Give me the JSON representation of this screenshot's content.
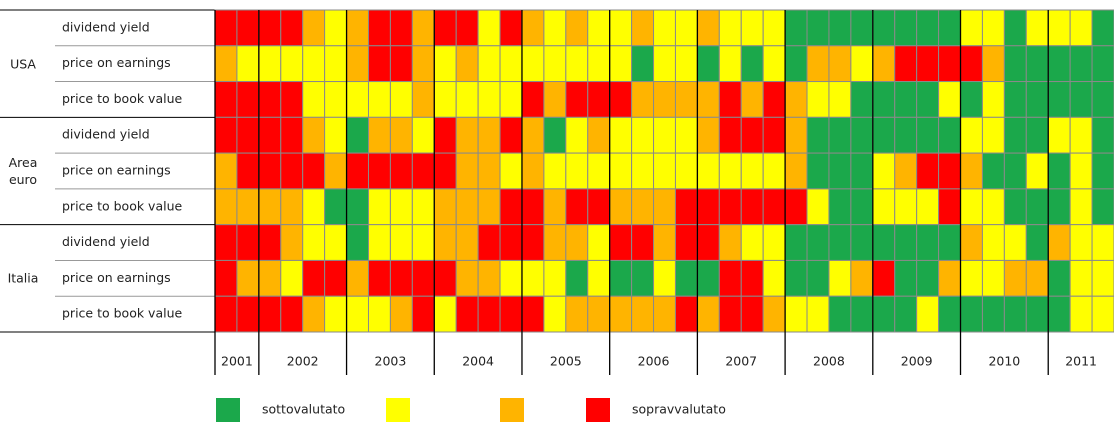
{
  "chart_data": {
    "type": "heatmap",
    "categories": [
      "2001",
      null,
      "2002",
      null,
      null,
      null,
      "2003",
      null,
      null,
      null,
      "2004",
      null,
      null,
      null,
      "2005",
      null,
      null,
      null,
      "2006",
      null,
      null,
      null,
      "2007",
      null,
      null,
      null,
      "2008",
      null,
      null,
      null,
      "2009",
      null,
      null,
      null,
      "2010",
      null,
      null,
      null,
      "2011",
      null,
      null
    ],
    "groups": [
      {
        "label": "USA",
        "rows": [
          {
            "label": "dividend yield",
            "values": [
              4,
              4,
              4,
              4,
              3,
              2,
              3,
              4,
              4,
              3,
              4,
              4,
              2,
              4,
              3,
              2,
              3,
              2,
              2,
              3,
              2,
              2,
              3,
              2,
              2,
              2,
              1,
              1,
              1,
              1,
              1,
              1,
              1,
              1,
              2,
              2,
              1,
              2,
              2,
              2,
              1
            ]
          },
          {
            "label": "price on earnings",
            "values": [
              3,
              2,
              2,
              2,
              2,
              2,
              3,
              4,
              4,
              3,
              2,
              3,
              2,
              2,
              2,
              2,
              2,
              2,
              2,
              1,
              2,
              2,
              1,
              2,
              1,
              2,
              1,
              3,
              3,
              2,
              3,
              4,
              4,
              4,
              4,
              3,
              1,
              1,
              1,
              1,
              1
            ]
          },
          {
            "label": "price to book value",
            "values": [
              4,
              4,
              4,
              4,
              2,
              2,
              2,
              2,
              2,
              3,
              2,
              2,
              2,
              2,
              4,
              3,
              4,
              4,
              4,
              3,
              3,
              3,
              3,
              4,
              3,
              4,
              3,
              2,
              2,
              1,
              1,
              1,
              1,
              2,
              1,
              2,
              1,
              1,
              1,
              1,
              1
            ]
          }
        ]
      },
      {
        "label": "Area euro",
        "rows": [
          {
            "label": "dividend yield",
            "values": [
              4,
              4,
              4,
              4,
              3,
              2,
              1,
              3,
              3,
              2,
              4,
              3,
              3,
              4,
              3,
              1,
              2,
              3,
              2,
              2,
              2,
              2,
              3,
              4,
              4,
              4,
              3,
              1,
              1,
              1,
              1,
              1,
              1,
              1,
              2,
              2,
              1,
              1,
              2,
              2,
              1
            ]
          },
          {
            "label": "price on earnings",
            "values": [
              3,
              4,
              4,
              4,
              4,
              3,
              4,
              4,
              4,
              4,
              4,
              3,
              3,
              2,
              3,
              2,
              2,
              2,
              2,
              2,
              2,
              2,
              2,
              2,
              2,
              2,
              3,
              1,
              1,
              1,
              2,
              3,
              4,
              4,
              3,
              1,
              1,
              2,
              1,
              2,
              1
            ]
          },
          {
            "label": "price to book value",
            "values": [
              3,
              3,
              3,
              3,
              2,
              1,
              1,
              2,
              2,
              2,
              3,
              3,
              3,
              4,
              4,
              3,
              4,
              4,
              3,
              3,
              3,
              4,
              4,
              4,
              4,
              4,
              4,
              2,
              1,
              1,
              2,
              2,
              2,
              4,
              2,
              2,
              1,
              1,
              1,
              2,
              1
            ]
          }
        ]
      },
      {
        "label": "Italia",
        "rows": [
          {
            "label": "dividend yield",
            "values": [
              4,
              4,
              4,
              3,
              2,
              2,
              1,
              2,
              2,
              2,
              3,
              3,
              4,
              4,
              4,
              3,
              3,
              2,
              4,
              4,
              3,
              4,
              4,
              3,
              2,
              2,
              1,
              1,
              1,
              1,
              1,
              1,
              1,
              1,
              3,
              2,
              2,
              1,
              3,
              2,
              2
            ]
          },
          {
            "label": "price on earnings",
            "values": [
              4,
              3,
              3,
              2,
              4,
              4,
              3,
              4,
              4,
              4,
              4,
              3,
              3,
              2,
              2,
              2,
              1,
              2,
              1,
              1,
              2,
              1,
              1,
              4,
              4,
              2,
              1,
              1,
              2,
              3,
              4,
              1,
              1,
              3,
              2,
              2,
              3,
              3,
              1,
              2,
              2
            ]
          },
          {
            "label": "price to book value",
            "values": [
              4,
              4,
              4,
              4,
              3,
              2,
              2,
              2,
              3,
              4,
              2,
              4,
              4,
              4,
              4,
              2,
              3,
              3,
              3,
              3,
              3,
              4,
              3,
              4,
              4,
              3,
              2,
              2,
              1,
              1,
              1,
              1,
              2,
              1,
              1,
              1,
              1,
              1,
              1,
              2,
              2
            ]
          }
        ]
      }
    ],
    "color_scale": [
      {
        "value": 1,
        "color": "#1ba84b",
        "label": "sottovalutato"
      },
      {
        "value": 2,
        "color": "#ffff00"
      },
      {
        "value": 3,
        "color": "#ffb400"
      },
      {
        "value": 4,
        "color": "#ff0000",
        "label": "sopravvalutato"
      }
    ]
  }
}
